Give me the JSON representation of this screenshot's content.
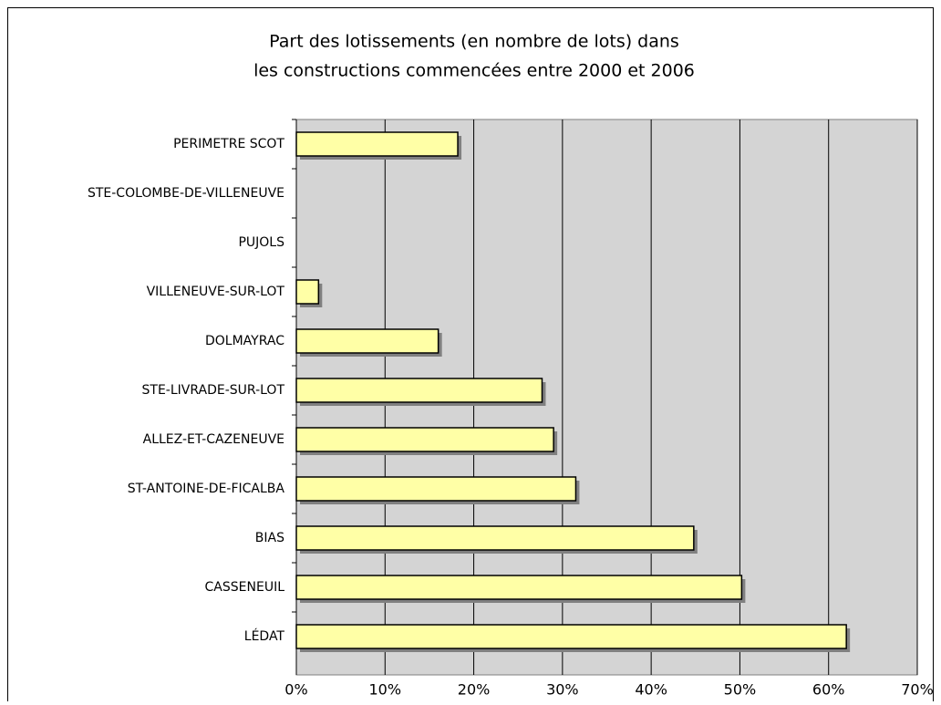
{
  "chart_data": {
    "type": "hbar",
    "title": [
      "Part des lotissements (en nombre de lots) dans",
      "les constructions commencées entre 2000 et 2006"
    ],
    "categories": [
      "PERIMETRE SCOT",
      "STE-COLOMBE-DE-VILLENEUVE",
      "PUJOLS",
      "VILLENEUVE-SUR-LOT",
      "DOLMAYRAC",
      "STE-LIVRADE-SUR-LOT",
      "ALLEZ-ET-CAZENEUVE",
      "ST-ANTOINE-DE-FICALBA",
      "BIAS",
      "CASSENEUIL",
      "LÉDAT"
    ],
    "values": [
      18.2,
      0,
      0,
      2.5,
      16,
      27.7,
      29,
      31.5,
      44.8,
      50.2,
      62
    ],
    "color": "#ffffa6",
    "xlim": [
      0,
      70
    ],
    "xticks": [
      {
        "value": 0,
        "label": "0%"
      },
      {
        "value": 10,
        "label": "10%"
      },
      {
        "value": 20,
        "label": "20%"
      },
      {
        "value": 30,
        "label": "30%"
      },
      {
        "value": 40,
        "label": "40%"
      },
      {
        "value": 50,
        "label": "50%"
      },
      {
        "value": 60,
        "label": "60%"
      },
      {
        "value": 70,
        "label": "70%"
      }
    ],
    "grid": true
  }
}
